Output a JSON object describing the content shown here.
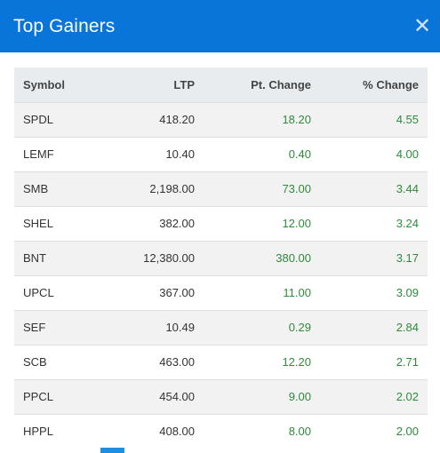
{
  "header": {
    "title": "Top Gainers",
    "close_icon": "close-icon"
  },
  "table": {
    "columns": [
      "Symbol",
      "LTP",
      "Pt. Change",
      "% Change"
    ],
    "rows": [
      {
        "symbol": "SPDL",
        "ltp": "418.20",
        "pt": "18.20",
        "pct": "4.55"
      },
      {
        "symbol": "LEMF",
        "ltp": "10.40",
        "pt": "0.40",
        "pct": "4.00"
      },
      {
        "symbol": "SMB",
        "ltp": "2,198.00",
        "pt": "73.00",
        "pct": "3.44"
      },
      {
        "symbol": "SHEL",
        "ltp": "382.00",
        "pt": "12.00",
        "pct": "3.24"
      },
      {
        "symbol": "BNT",
        "ltp": "12,380.00",
        "pt": "380.00",
        "pct": "3.17"
      },
      {
        "symbol": "UPCL",
        "ltp": "367.00",
        "pt": "11.00",
        "pct": "3.09"
      },
      {
        "symbol": "SEF",
        "ltp": "10.49",
        "pt": "0.29",
        "pct": "2.84"
      },
      {
        "symbol": "SCB",
        "ltp": "463.00",
        "pt": "12.20",
        "pct": "2.71"
      },
      {
        "symbol": "PPCL",
        "ltp": "454.00",
        "pt": "9.00",
        "pct": "2.02"
      },
      {
        "symbol": "HPPL",
        "ltp": "408.00",
        "pt": "8.00",
        "pct": "2.00"
      }
    ]
  },
  "colors": {
    "header_bg": "#0a75d8",
    "gain": "#2e8b3a",
    "row_alt": "#f2f2f2"
  }
}
